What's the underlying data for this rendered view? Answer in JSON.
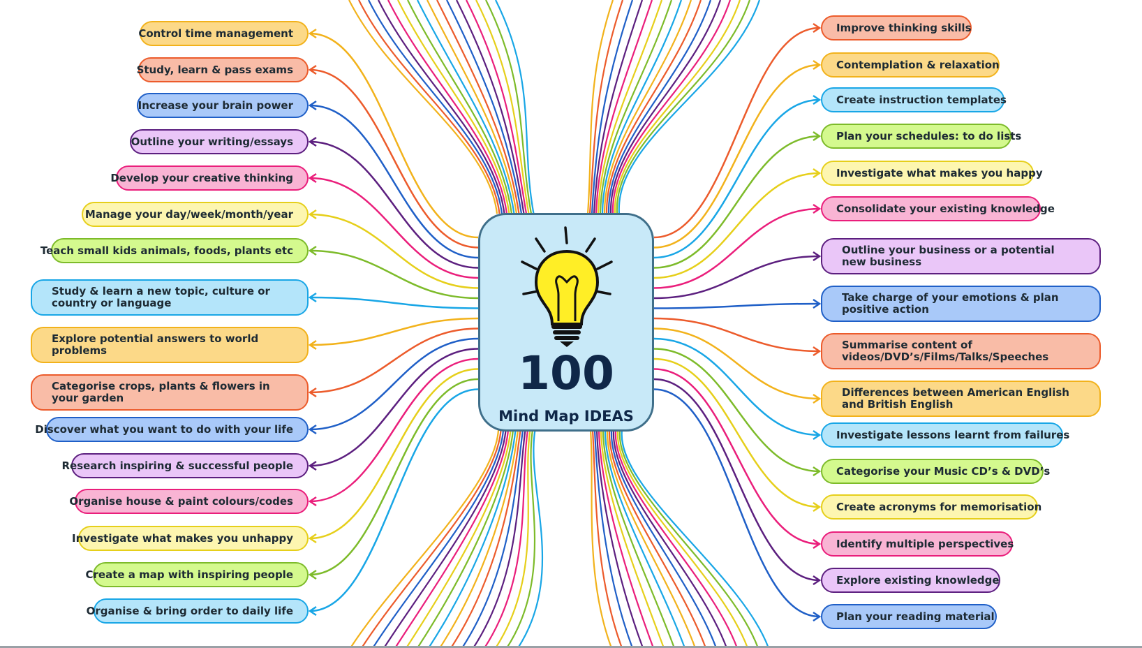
{
  "center": {
    "number": "100",
    "subtitle": "Mind Map IDEAS"
  },
  "colors": {
    "yellow": {
      "fill": "#fcd988",
      "stroke": "#f2b21b"
    },
    "orange": {
      "fill": "#f9bca7",
      "stroke": "#ec5b2b"
    },
    "blue": {
      "fill": "#a9c9f9",
      "stroke": "#1f5fc7"
    },
    "purple": {
      "fill": "#eac6f8",
      "stroke": "#5c1f7f"
    },
    "pink": {
      "fill": "#f9b4d4",
      "stroke": "#ea1e7b"
    },
    "lemon": {
      "fill": "#fdf6b0",
      "stroke": "#e6cf1a"
    },
    "green": {
      "fill": "#d4f98e",
      "stroke": "#7dbb2a"
    },
    "cyan": {
      "fill": "#b4e5fa",
      "stroke": "#18a6e6"
    }
  },
  "left_ideas": [
    {
      "text": "Control time management",
      "color": "yellow"
    },
    {
      "text": "Study, learn & pass exams",
      "color": "orange"
    },
    {
      "text": "Increase your brain power",
      "color": "blue"
    },
    {
      "text": "Outline your writing/essays",
      "color": "purple"
    },
    {
      "text": "Develop your creative thinking",
      "color": "pink"
    },
    {
      "text": "Manage your day/week/month/year",
      "color": "lemon"
    },
    {
      "text": "Teach small kids animals, foods, plants etc",
      "color": "green"
    },
    {
      "text": "Study & learn a new topic, culture or country or language",
      "color": "cyan"
    },
    {
      "text": "Explore potential answers to world problems",
      "color": "yellow"
    },
    {
      "text": "Categorise crops, plants & flowers in your garden",
      "color": "orange"
    },
    {
      "text": "Discover what you want to do with your life",
      "color": "blue"
    },
    {
      "text": "Research inspiring & successful people",
      "color": "purple"
    },
    {
      "text": "Organise house & paint colours/codes",
      "color": "pink"
    },
    {
      "text": "Investigate what makes you unhappy",
      "color": "lemon"
    },
    {
      "text": "Create a map with inspiring people",
      "color": "green"
    },
    {
      "text": "Organise & bring order to daily life",
      "color": "cyan"
    }
  ],
  "right_ideas": [
    {
      "text": "Improve thinking skills",
      "color": "orange"
    },
    {
      "text": "Contemplation & relaxation",
      "color": "yellow"
    },
    {
      "text": "Create instruction templates",
      "color": "cyan"
    },
    {
      "text": "Plan your schedules: to do lists",
      "color": "green"
    },
    {
      "text": "Investigate what makes you happy",
      "color": "lemon"
    },
    {
      "text": "Consolidate your existing knowledge",
      "color": "pink"
    },
    {
      "text": "Outline your business or a potential new business",
      "color": "purple"
    },
    {
      "text": "Take charge of your emotions & plan positive action",
      "color": "blue"
    },
    {
      "text": "Summarise content of videos/DVD’s/Films/Talks/Speeches",
      "color": "orange"
    },
    {
      "text": "Differences between American English and British English",
      "color": "yellow"
    },
    {
      "text": "Investigate lessons learnt from failures",
      "color": "cyan"
    },
    {
      "text": "Categorise your Music CD’s & DVD’s",
      "color": "green"
    },
    {
      "text": "Create acronyms for memorisation",
      "color": "lemon"
    },
    {
      "text": "Identify multiple perspectives",
      "color": "pink"
    },
    {
      "text": "Explore existing knowledge",
      "color": "purple"
    },
    {
      "text": "Plan your reading material",
      "color": "blue"
    }
  ],
  "offscreen_colors": [
    "yellow",
    "orange",
    "blue",
    "purple",
    "pink",
    "lemon",
    "green",
    "cyan"
  ]
}
